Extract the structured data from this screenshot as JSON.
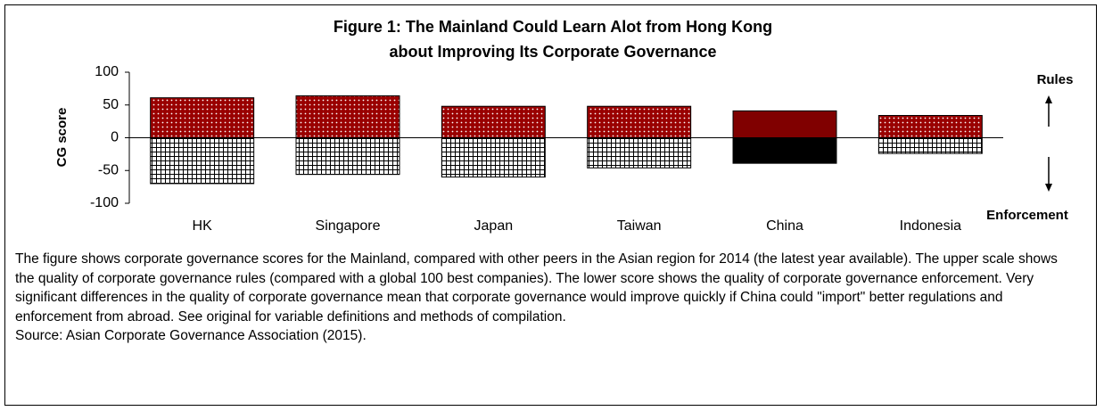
{
  "chart_data": {
    "type": "bar",
    "title": [
      "Figure 1: The Mainland Could Learn Alot from Hong Kong",
      "about Improving Its Corporate Governance"
    ],
    "ylabel": "CG score",
    "categories": [
      "HK",
      "Singapore",
      "Japan",
      "Taiwan",
      "China",
      "Indonesia"
    ],
    "series": [
      {
        "name": "Rules",
        "colors": [
          "#990000",
          "#990000",
          "#990000",
          "#990000",
          "#800000",
          "#990000"
        ],
        "patterns": [
          "dots",
          "dots",
          "dots",
          "dots",
          null,
          "dots"
        ],
        "values": [
          61,
          64,
          48,
          48,
          41,
          34
        ]
      },
      {
        "name": "Enforcement",
        "colors": [
          "#ffffff",
          "#ffffff",
          "#ffffff",
          "#ffffff",
          "#000000",
          "#ffffff"
        ],
        "patterns": [
          "grid",
          "grid",
          "grid",
          "grid",
          null,
          "grid"
        ],
        "values": [
          -70,
          -56,
          -60,
          -46,
          -39,
          -24
        ]
      }
    ],
    "ylim": [
      -100,
      100
    ],
    "yticks": [
      -100,
      -50,
      0,
      50,
      100
    ],
    "caption": "The figure shows corporate governance scores for the Mainland, compared with other peers in the Asian region for 2014 (the latest year available). The upper scale shows the quality of corporate governance rules (compared with a global 100 best companies). The lower score shows the quality of corporate governance enforcement. Very significant differences in the quality of corporate governance mean that corporate governance would improve quickly if China could \"import\" better regulations and enforcement from abroad. See original for variable definitions and methods of compilation.",
    "source": "Source: Asian Corporate Governance Association (2015)."
  }
}
